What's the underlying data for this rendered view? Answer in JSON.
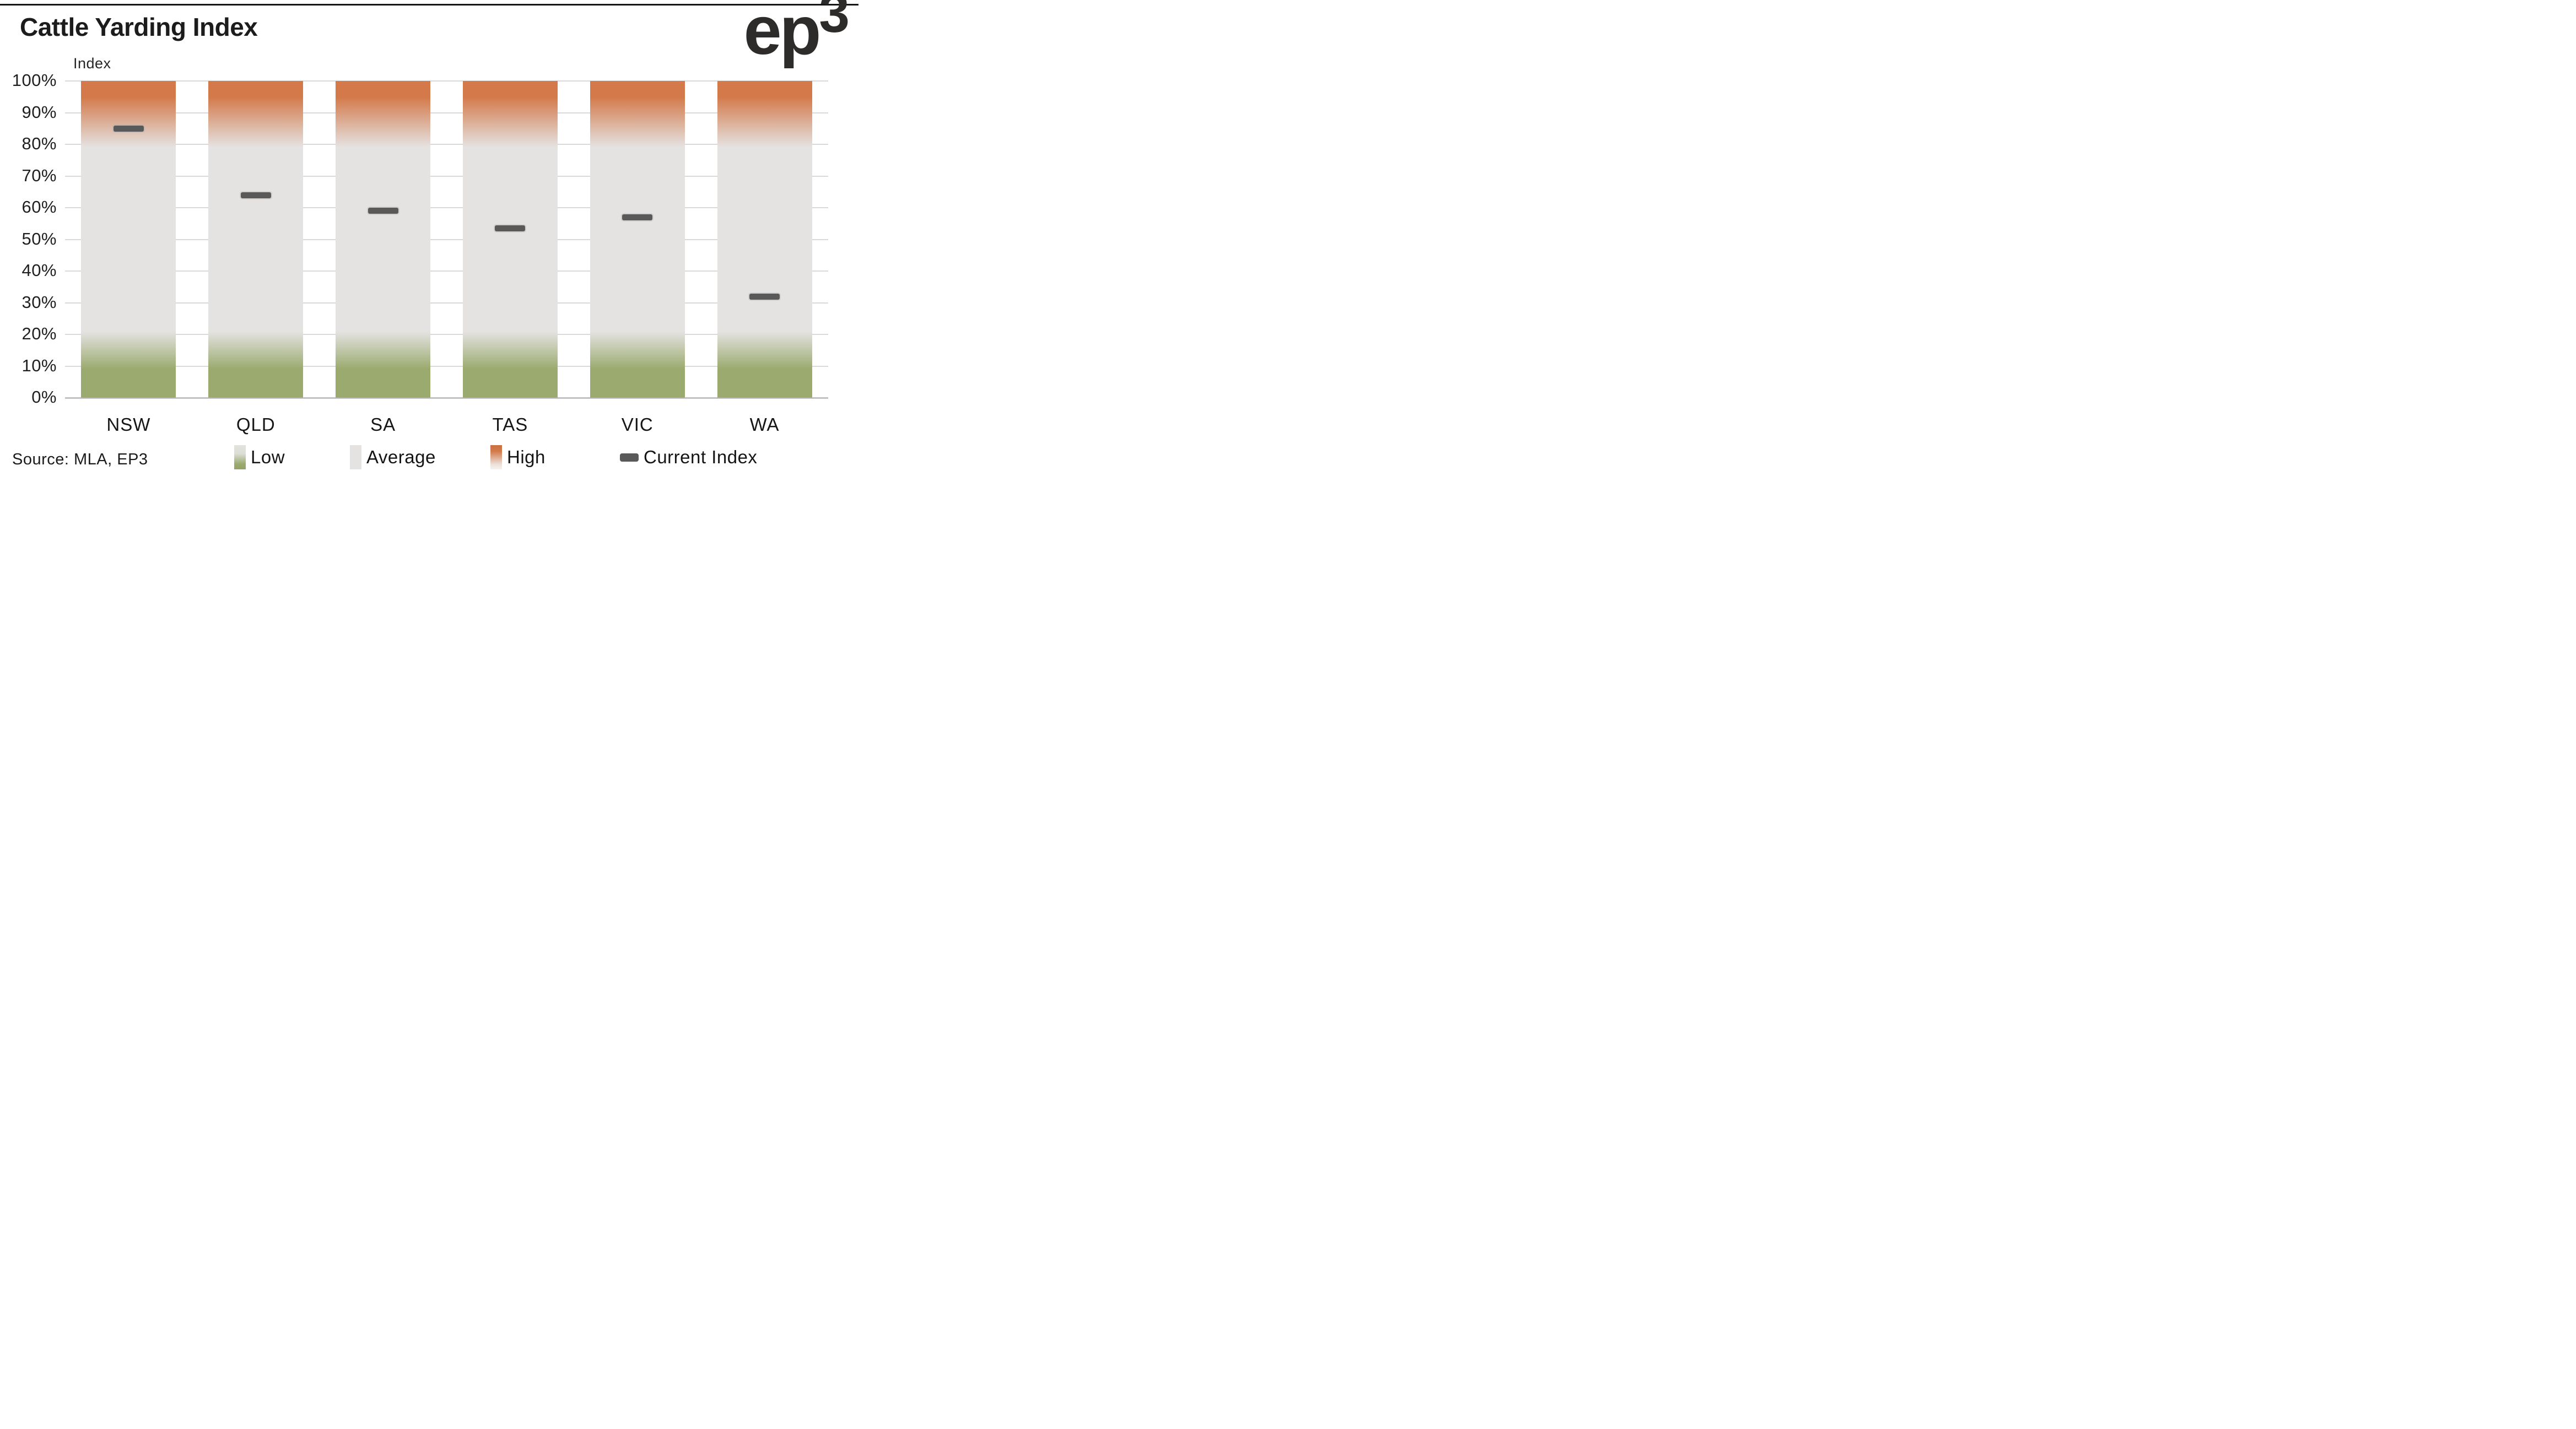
{
  "header": {
    "title": "Cattle Yarding Index",
    "logo_text": "ep",
    "logo_sup": "3"
  },
  "footer": {
    "source": "Source: MLA, EP3"
  },
  "colors": {
    "high_orange": "#d3794a",
    "average_gray": "#e5e3e2",
    "low_green": "#9baa6f",
    "current_index_dark": "#595959",
    "gridline": "#d9d9d9",
    "text": "#1c1c1c"
  },
  "chart_data": {
    "type": "bar",
    "title": "Cattle Yarding Index",
    "axis_title": "Index",
    "categories": [
      "NSW",
      "QLD",
      "SA",
      "TAS",
      "VIC",
      "WA"
    ],
    "series": [
      {
        "name": "Current Index",
        "values": [
          85,
          64,
          59,
          53.5,
          57,
          32
        ]
      }
    ],
    "bands": {
      "low_range": [
        0,
        20
      ],
      "average_range": [
        20,
        80
      ],
      "high_range": [
        80,
        100
      ],
      "note": "each bar is a full-height 0-100% band column: green Low zone at bottom, gray Average middle, orange High top, blended with gradients"
    },
    "ylim": [
      0,
      100
    ],
    "ytick_step": 10,
    "ytick_suffix": "%",
    "grid": true,
    "legend_position": "bottom",
    "legend": [
      {
        "label": "Low",
        "swatch": "gradient-gray-to-green"
      },
      {
        "label": "Average",
        "swatch": "flat-gray"
      },
      {
        "label": "High",
        "swatch": "gradient-orange-to-light"
      },
      {
        "label": "Current Index",
        "swatch": "dark-dash"
      }
    ]
  }
}
